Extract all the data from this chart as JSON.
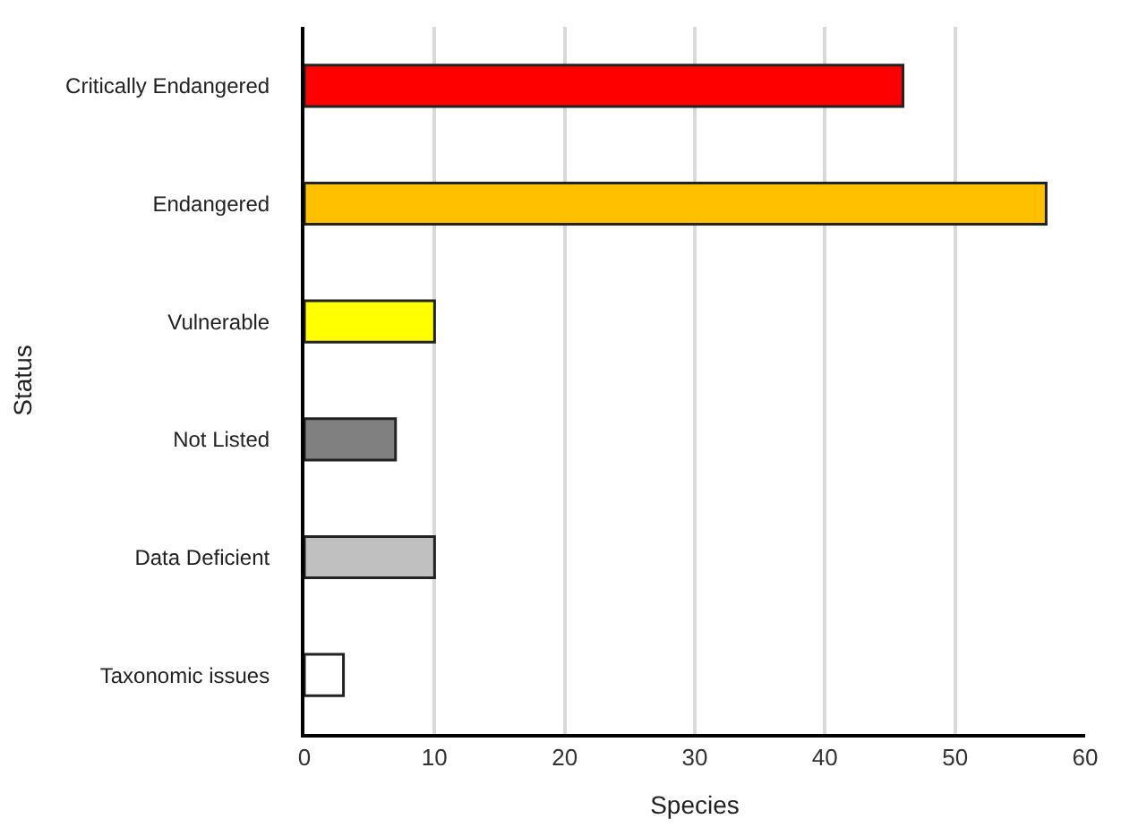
{
  "chart_data": {
    "type": "bar",
    "orientation": "horizontal",
    "xlabel": "Species",
    "ylabel": "Status",
    "categories": [
      "Critically Endangered",
      "Endangered",
      "Vulnerable",
      "Not Listed",
      "Data Deficient",
      "Taxonomic issues"
    ],
    "values": [
      46,
      57,
      10,
      7,
      10,
      3
    ],
    "colors": [
      "#ff0000",
      "#ffc000",
      "#ffff00",
      "#808080",
      "#c0c0c0",
      "#ffffff"
    ],
    "xlim": [
      0,
      60
    ],
    "xticks": [
      0,
      10,
      20,
      30,
      40,
      50,
      60
    ],
    "grid": "x",
    "legend": false
  }
}
